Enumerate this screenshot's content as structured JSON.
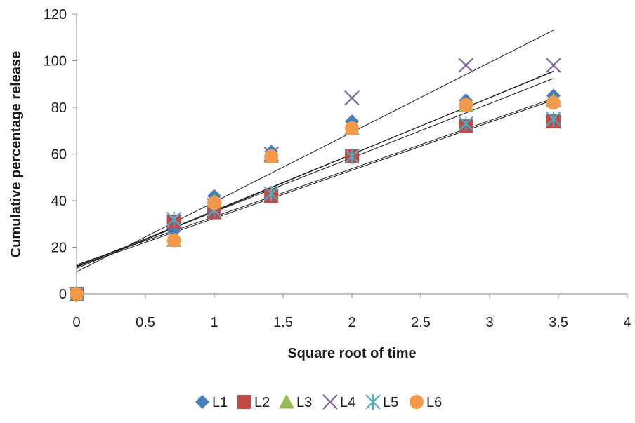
{
  "chart_data": {
    "type": "scatter",
    "title": "",
    "xlabel": "Square root of time",
    "ylabel": "Cumulative percentage release",
    "xlim": [
      0,
      4
    ],
    "ylim": [
      0,
      120
    ],
    "xticks": [
      0,
      0.5,
      1,
      1.5,
      2,
      2.5,
      3,
      3.5,
      4
    ],
    "xtick_labels": [
      "0",
      "0.5",
      "1",
      "1.5",
      "2",
      "2.5",
      "3",
      "3.5",
      "4"
    ],
    "yticks": [
      0,
      20,
      40,
      60,
      80,
      100,
      120
    ],
    "ytick_labels": [
      "0",
      "20",
      "40",
      "60",
      "80",
      "100",
      "120"
    ],
    "grid": false,
    "legend_position": "bottom",
    "x": [
      0,
      0.707,
      1,
      1.414,
      2,
      2.828,
      3.464
    ],
    "series": [
      {
        "name": "L1",
        "marker": "diamond",
        "color": "#4a7ebb",
        "values": [
          0,
          27,
          42,
          61,
          74,
          83,
          85
        ],
        "trendline": [
          12.0,
          23.2
        ]
      },
      {
        "name": "L2",
        "marker": "square",
        "color": "#be4b48",
        "values": [
          0,
          31,
          35,
          42,
          59,
          72,
          74
        ],
        "trendline": [
          12.5,
          20.6
        ]
      },
      {
        "name": "L3",
        "marker": "triangle",
        "color": "#98b954",
        "values": [
          0,
          23,
          40,
          59,
          71,
          81,
          83
        ],
        "trendline": [
          11.0,
          24.4
        ]
      },
      {
        "name": "L4",
        "marker": "x",
        "color": "#7e62a1",
        "values": [
          0,
          32,
          38,
          60,
          84,
          98,
          98
        ],
        "trendline": [
          9.5,
          29.9
        ]
      },
      {
        "name": "L5",
        "marker": "star",
        "color": "#4bacc6",
        "values": [
          0,
          32,
          36,
          43,
          59,
          73,
          75
        ],
        "trendline": [
          11.8,
          20.6
        ]
      },
      {
        "name": "L6",
        "marker": "circle",
        "color": "#f29a49",
        "values": [
          0,
          23,
          39,
          59,
          71,
          81,
          82
        ],
        "trendline": [
          11.5,
          24.2
        ]
      }
    ]
  }
}
